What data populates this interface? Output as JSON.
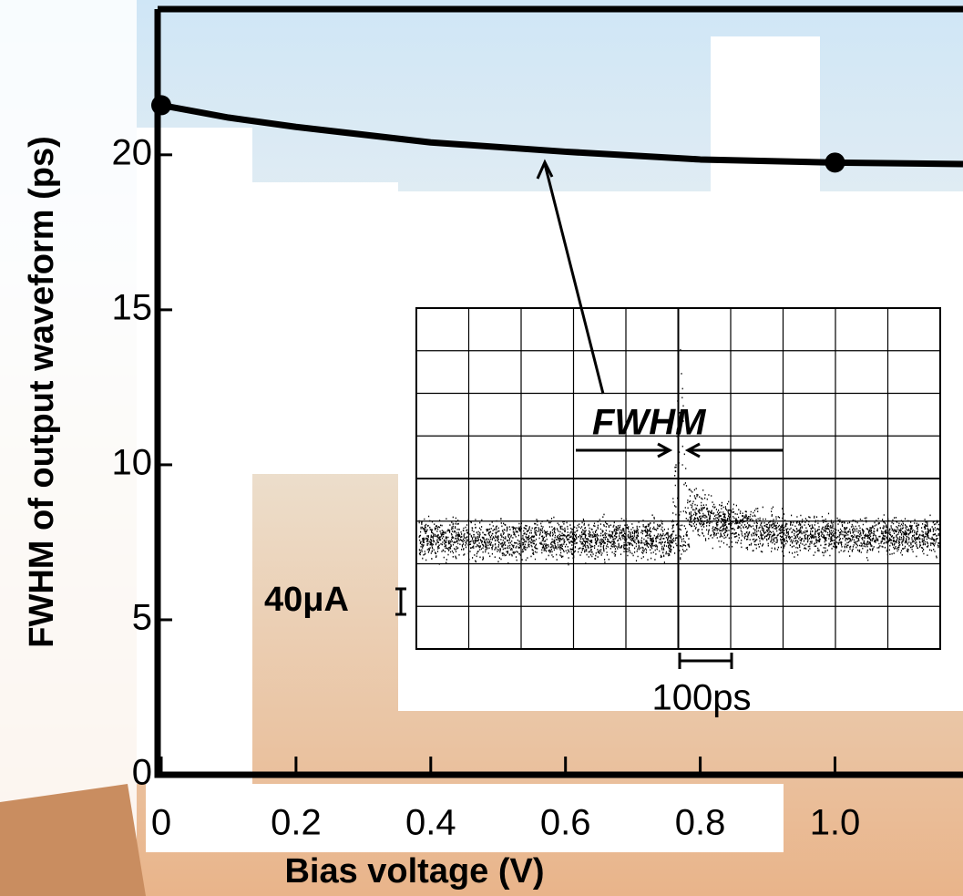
{
  "chart_data": {
    "type": "line",
    "x_label": "Bias voltage  (V)",
    "y_label": "FWHM of output waveform  (ps)",
    "xlim": [
      0,
      1.19
    ],
    "ylim": [
      0,
      24.7
    ],
    "xticks": [
      0,
      0.2,
      0.4,
      0.6,
      0.8,
      {
        "value": 1,
        "label": "1.0"
      }
    ],
    "yticks": [
      0,
      5,
      10,
      15,
      20
    ],
    "series": [
      {
        "color": "#000000",
        "x": [
          0,
          0.1,
          0.2,
          0.4,
          0.6,
          0.8,
          1,
          1.19
        ],
        "values": [
          21.6,
          21.2,
          20.9,
          20.4,
          20.1,
          19.85,
          19.75,
          19.7
        ]
      }
    ],
    "markers": {
      "x": [
        0,
        1
      ],
      "values": [
        21.6,
        19.75
      ]
    },
    "annotations": {
      "inset_label": "FWHM",
      "scale_label": "100ps",
      "current_label": "40μA"
    }
  }
}
